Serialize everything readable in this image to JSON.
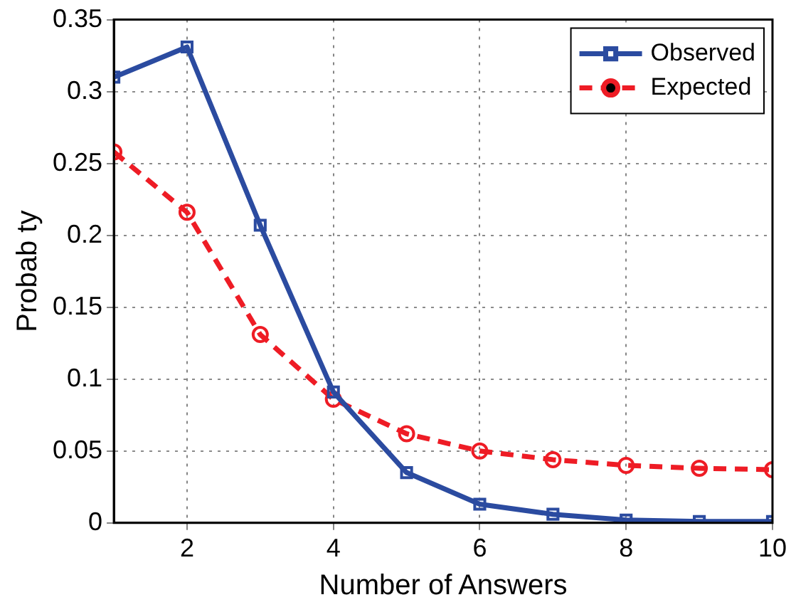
{
  "chart_data": {
    "type": "line",
    "xlabel": "Number of Answers",
    "ylabel": "Probab ty",
    "x": [
      1,
      2,
      3,
      4,
      5,
      6,
      7,
      8,
      9,
      10
    ],
    "series": [
      {
        "name": "Observed",
        "color": "#2b4ba0",
        "marker": "square",
        "line_style": "solid",
        "values": [
          0.31,
          0.331,
          0.207,
          0.091,
          0.035,
          0.013,
          0.006,
          0.002,
          0.001,
          0.001
        ]
      },
      {
        "name": "Expected",
        "color": "#ee1c25",
        "marker": "circle",
        "line_style": "dashed",
        "values": [
          0.258,
          0.216,
          0.131,
          0.086,
          0.062,
          0.05,
          0.044,
          0.04,
          0.038,
          0.037
        ]
      }
    ],
    "xlim": [
      1,
      10
    ],
    "xticks": [
      2,
      4,
      6,
      8,
      10
    ],
    "ylim": [
      0,
      0.35
    ],
    "yticks": [
      0,
      0.05,
      0.1,
      0.15,
      0.2,
      0.25,
      0.3,
      0.35
    ],
    "grid": true,
    "legend": "top right"
  }
}
